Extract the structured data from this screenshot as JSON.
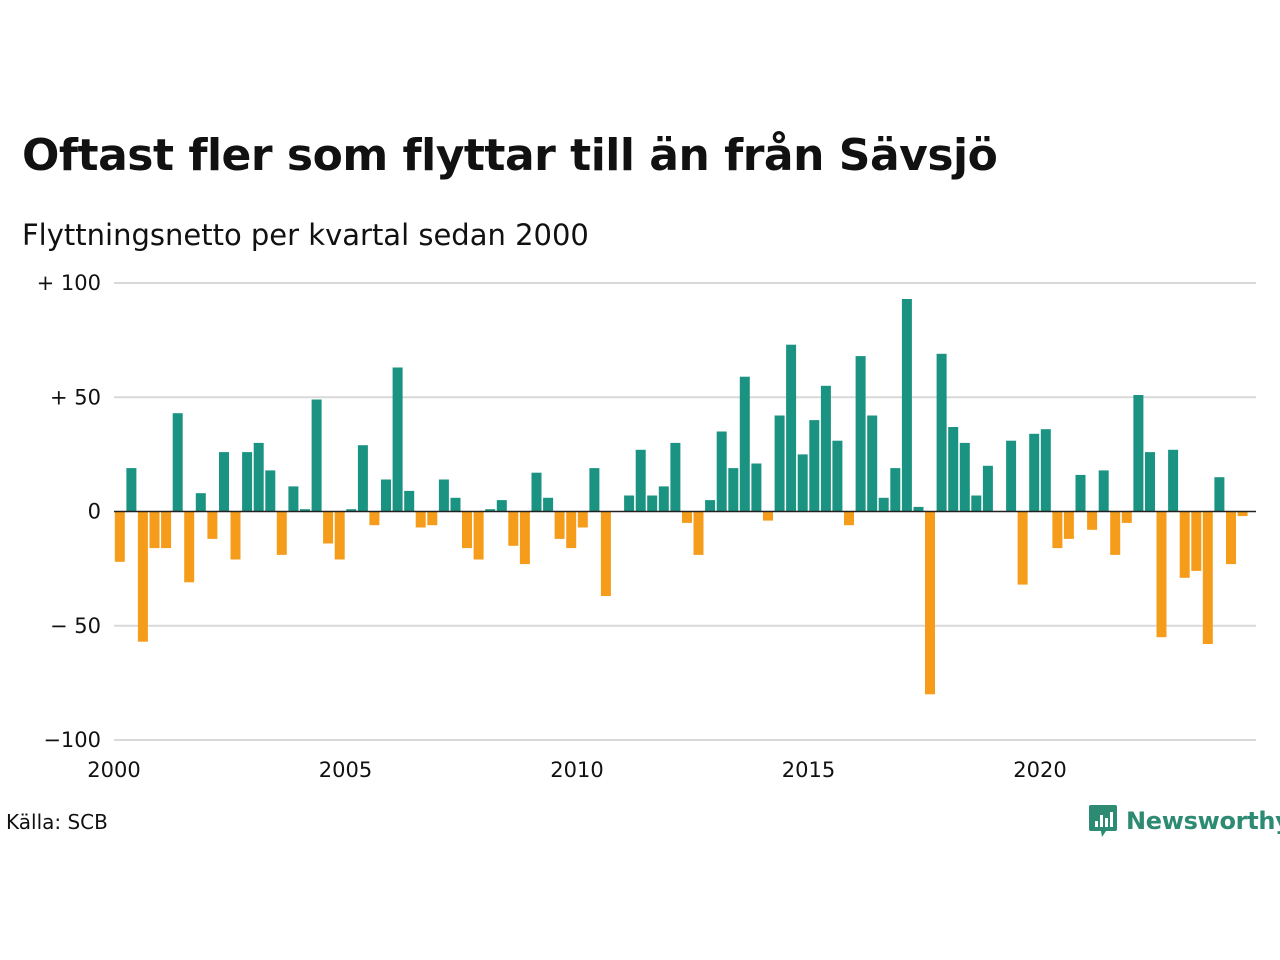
{
  "title": "Oftast fler som flyttar till än från Sävsjö",
  "subtitle": "Flyttningsnetto per kvartal sedan 2000",
  "source": "Källa: SCB",
  "logo": {
    "text": "Newsworthy",
    "icon": "newsworthy-logo-icon",
    "color": "#2d8a73"
  },
  "colors": {
    "positive": "#1b9382",
    "negative": "#f59d1b",
    "grid": "#d9d9d9",
    "zero_line": "#222222"
  },
  "chart_data": {
    "type": "bar",
    "title": "Oftast fler som flyttar till än från Sävsjö",
    "subtitle": "Flyttningsnetto per kvartal sedan 2000",
    "x_start": "2000 Q1",
    "x_ticks": [
      "2000",
      "2005",
      "2010",
      "2015",
      "2020"
    ],
    "y_ticks": [
      {
        "value": 100,
        "label": "+ 100"
      },
      {
        "value": 50,
        "label": "+  50"
      },
      {
        "value": 0,
        "label": "0"
      },
      {
        "value": -50,
        "label": "− 50"
      },
      {
        "value": -100,
        "label": "−100"
      }
    ],
    "ylim": [
      -100,
      100
    ],
    "grid": true,
    "values": [
      -22,
      19,
      -57,
      -16,
      -16,
      43,
      -31,
      8,
      -12,
      26,
      -21,
      26,
      30,
      18,
      -19,
      11,
      1,
      49,
      -14,
      -21,
      1,
      29,
      -6,
      14,
      63,
      9,
      -7,
      -6,
      14,
      6,
      -16,
      -21,
      1,
      5,
      -15,
      -23,
      17,
      6,
      -12,
      -16,
      -7,
      19,
      -37,
      0,
      7,
      27,
      7,
      11,
      30,
      -5,
      -19,
      5,
      35,
      19,
      59,
      21,
      -4,
      42,
      73,
      25,
      40,
      55,
      31,
      -6,
      68,
      42,
      6,
      19,
      93,
      2,
      -80,
      69,
      37,
      30,
      7,
      20,
      0,
      31,
      -32,
      34,
      36,
      -16,
      -12,
      16,
      -8,
      18,
      -19,
      -5,
      51,
      26,
      -55,
      27,
      -29,
      -26,
      -58,
      15,
      -23,
      -2
    ]
  }
}
